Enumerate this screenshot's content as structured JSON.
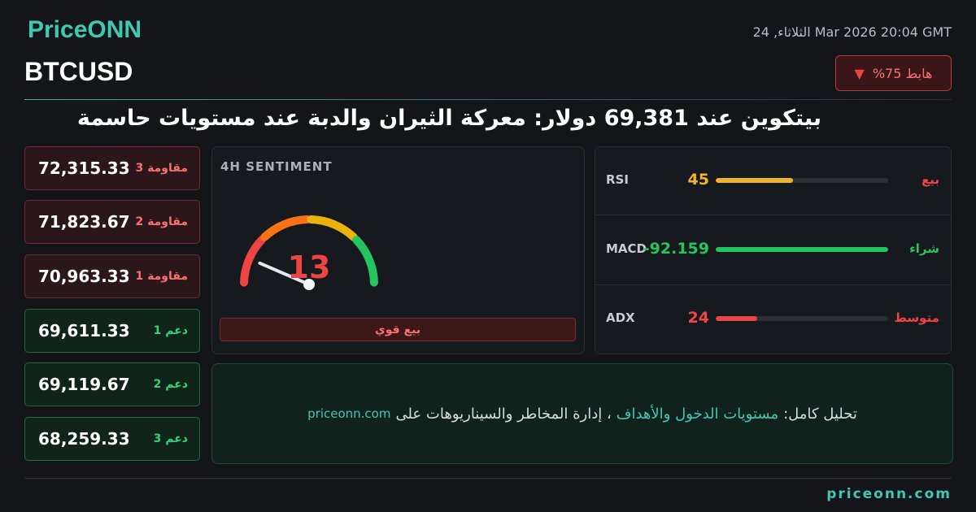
{
  "header": {
    "brand": "PriceONN",
    "date": "الثلاثاء, 24 Mar 2026 20:04 GMT",
    "symbol": "BTCUSD",
    "badge": "%هابط 75",
    "headline": "بيتكوين عند 69,381 دولار: معركة الثيران والدبة عند مستويات حاسمة"
  },
  "levels": [
    {
      "label": "مقاومة 3",
      "value": "72,315.33",
      "kind": "resistance"
    },
    {
      "label": "مقاومة 2",
      "value": "71,823.67",
      "kind": "resistance"
    },
    {
      "label": "مقاومة 1",
      "value": "70,963.33",
      "kind": "resistance"
    },
    {
      "label": "دعم 1",
      "value": "69,611.33",
      "kind": "support"
    },
    {
      "label": "دعم 2",
      "value": "69,119.67",
      "kind": "support"
    },
    {
      "label": "دعم 3",
      "value": "68,259.33",
      "kind": "support"
    }
  ],
  "sentiment": {
    "title": "4H SENTIMENT",
    "value": 13,
    "range": [
      0,
      100
    ],
    "label": "بيع قوي"
  },
  "indicators": [
    {
      "name": "RSI",
      "value": 45,
      "signal": "بيع",
      "color": "#f0b429",
      "signal_color": "#ef4444",
      "bar_color": "#f0b429",
      "bar": 45
    },
    {
      "name": "MACD",
      "value": -92.159,
      "signal": "شراء",
      "color": "#22c55e",
      "signal_color": "#22c55e",
      "bar_color": "#22c55e",
      "bar": 100
    },
    {
      "name": "ADX",
      "value": 24,
      "signal": "متوسط",
      "color": "#ef4444",
      "signal_color": "#ef4444",
      "bar_color": "#ef4444",
      "bar": 24
    }
  ],
  "promo": {
    "lead": "تحليل كامل:",
    "highlight": "مستويات الدخول والأهداف",
    "rest": "، إدارة المخاطر والسيناريوهات على",
    "link": "priceonn.com"
  },
  "footer": {
    "site": "priceonn.com"
  }
}
